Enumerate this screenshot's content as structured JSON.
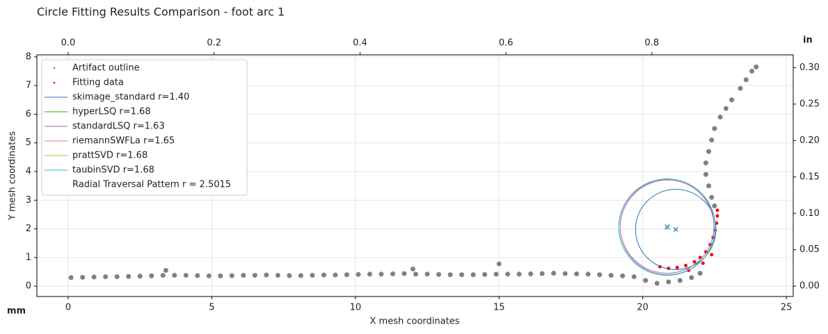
{
  "chart_data": {
    "type": "circle-fit",
    "title": "Circle Fitting Results Comparison - foot arc 1",
    "x_label": "X mesh coordinates",
    "y_label": "Y mesh coordinates",
    "x_unit": "mm",
    "x2_unit": "in",
    "xlim": [
      -1.09,
      25.24
    ],
    "ylim": [
      -0.36,
      8.07
    ],
    "xticks": [
      0,
      5,
      10,
      15,
      20,
      25
    ],
    "yticks": [
      0,
      1,
      2,
      3,
      4,
      5,
      6,
      7,
      8
    ],
    "x2lim": [
      -0.0429,
      0.9937
    ],
    "x2ticks": [
      {
        "value": 0,
        "label": "0.0"
      },
      {
        "value": 0.2,
        "label": "0.2"
      },
      {
        "value": 0.4,
        "label": "0.4"
      },
      {
        "value": 0.6,
        "label": "0.6"
      },
      {
        "value": 0.8,
        "label": "0.8"
      }
    ],
    "y2lim": [
      -0.0142,
      0.3177
    ],
    "y2ticks": [
      {
        "value": 0,
        "label": "0.00"
      },
      {
        "value": 0.05,
        "label": "0.05"
      },
      {
        "value": 0.1,
        "label": "0.10"
      },
      {
        "value": 0.15,
        "label": "0.15"
      },
      {
        "value": 0.2,
        "label": "0.20"
      },
      {
        "value": 0.25,
        "label": "0.25"
      },
      {
        "value": 0.3,
        "label": "0.30"
      }
    ],
    "grid": true,
    "legend": "upper left",
    "series": [
      {
        "name": "Artifact outline",
        "type": "scatter",
        "color": "#808080",
        "x": [
          0.1,
          0.5,
          0.9,
          1.3,
          1.7,
          2.1,
          2.5,
          2.9,
          3.3,
          3.4,
          3.7,
          4.1,
          4.5,
          4.9,
          5.3,
          5.7,
          6.1,
          6.5,
          6.9,
          7.3,
          7.7,
          8.1,
          8.5,
          8.9,
          9.3,
          9.7,
          10.1,
          10.5,
          10.9,
          11.3,
          11.7,
          12.0,
          12.1,
          12.5,
          12.9,
          13.3,
          13.7,
          14.1,
          14.5,
          14.9,
          15.0,
          15.3,
          15.7,
          16.1,
          16.5,
          16.9,
          17.3,
          17.7,
          18.1,
          18.5,
          18.9,
          19.3,
          19.7,
          20.1,
          20.5,
          20.9,
          21.3,
          21.7,
          22.0,
          22.5,
          22.4,
          22.3,
          22.2,
          22.2,
          22.3,
          22.4,
          22.5,
          22.7,
          22.9,
          23.1,
          23.4,
          23.6,
          23.8,
          23.95
        ],
        "y": [
          0.3,
          0.31,
          0.32,
          0.33,
          0.33,
          0.34,
          0.35,
          0.36,
          0.38,
          0.55,
          0.38,
          0.38,
          0.37,
          0.36,
          0.36,
          0.37,
          0.38,
          0.38,
          0.39,
          0.38,
          0.37,
          0.37,
          0.38,
          0.39,
          0.39,
          0.4,
          0.41,
          0.42,
          0.42,
          0.43,
          0.44,
          0.6,
          0.42,
          0.42,
          0.41,
          0.4,
          0.4,
          0.4,
          0.41,
          0.42,
          0.78,
          0.42,
          0.42,
          0.43,
          0.44,
          0.45,
          0.44,
          0.43,
          0.42,
          0.4,
          0.38,
          0.36,
          0.33,
          0.2,
          0.1,
          0.15,
          0.2,
          0.3,
          0.45,
          2.8,
          3.1,
          3.5,
          3.9,
          4.3,
          4.7,
          5.1,
          5.5,
          5.9,
          6.2,
          6.5,
          6.9,
          7.2,
          7.5,
          7.65
        ]
      },
      {
        "name": "Fitting data",
        "type": "scatter",
        "color": "#ff0000",
        "x": [
          20.6,
          20.9,
          21.2,
          21.5,
          21.8,
          22.0,
          22.2,
          22.35,
          22.45,
          22.52,
          22.57,
          22.6,
          22.6,
          21.6,
          22.1,
          22.4
        ],
        "y": [
          0.68,
          0.62,
          0.65,
          0.72,
          0.85,
          1.0,
          1.2,
          1.45,
          1.7,
          1.95,
          2.2,
          2.45,
          2.65,
          0.55,
          0.8,
          1.1
        ]
      },
      {
        "name": "skimage_standard r=1.40",
        "type": "circle",
        "color": "#1f77b4",
        "cx": 21.15,
        "cy": 1.98,
        "r": 1.4
      },
      {
        "name": "hyperLSQ r=1.68",
        "type": "circle",
        "color": "#2ca02c",
        "cx": 20.85,
        "cy": 2.06,
        "r": 1.68
      },
      {
        "name": "standardLSQ r=1.63",
        "type": "circle",
        "color": "#9467bd",
        "cx": 20.85,
        "cy": 2.08,
        "r": 1.63
      },
      {
        "name": "riemannSWFLa r=1.65",
        "type": "circle",
        "color": "#e377c2",
        "cx": 20.87,
        "cy": 2.05,
        "r": 1.65
      },
      {
        "name": "prattSVD r=1.68",
        "type": "circle",
        "color": "#bcbd22",
        "cx": 20.85,
        "cy": 2.06,
        "r": 1.68
      },
      {
        "name": "taubinSVD r=1.68",
        "type": "circle",
        "color": "#17becf",
        "cx": 20.85,
        "cy": 2.06,
        "r": 1.68
      }
    ],
    "legend_note": "Radial Traversal Pattern r = 2.5015"
  }
}
